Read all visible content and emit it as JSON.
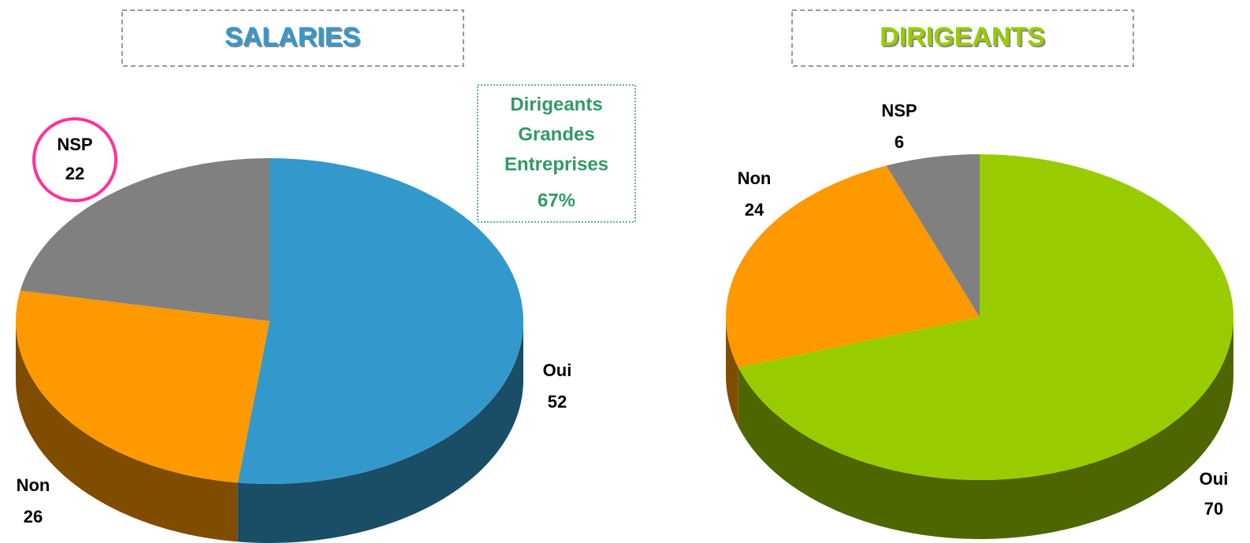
{
  "chart_data": [
    {
      "type": "pie",
      "title": "SALARIES",
      "title_color": "#3399cc",
      "categories": [
        "Oui",
        "Non",
        "NSP"
      ],
      "values": [
        52,
        26,
        22
      ],
      "colors": [
        "#3399cc",
        "#ff9900",
        "#808080"
      ],
      "annotation": {
        "lines": [
          "Dirigeants",
          "Grandes",
          "Entreprises"
        ],
        "value_label": "67%",
        "color": "#339966"
      }
    },
    {
      "type": "pie",
      "title": "DIRIGEANTS",
      "title_color": "#99cc00",
      "categories": [
        "Oui",
        "Non",
        "NSP"
      ],
      "values": [
        70,
        24,
        6
      ],
      "colors": [
        "#99cc00",
        "#ff9900",
        "#808080"
      ]
    }
  ]
}
